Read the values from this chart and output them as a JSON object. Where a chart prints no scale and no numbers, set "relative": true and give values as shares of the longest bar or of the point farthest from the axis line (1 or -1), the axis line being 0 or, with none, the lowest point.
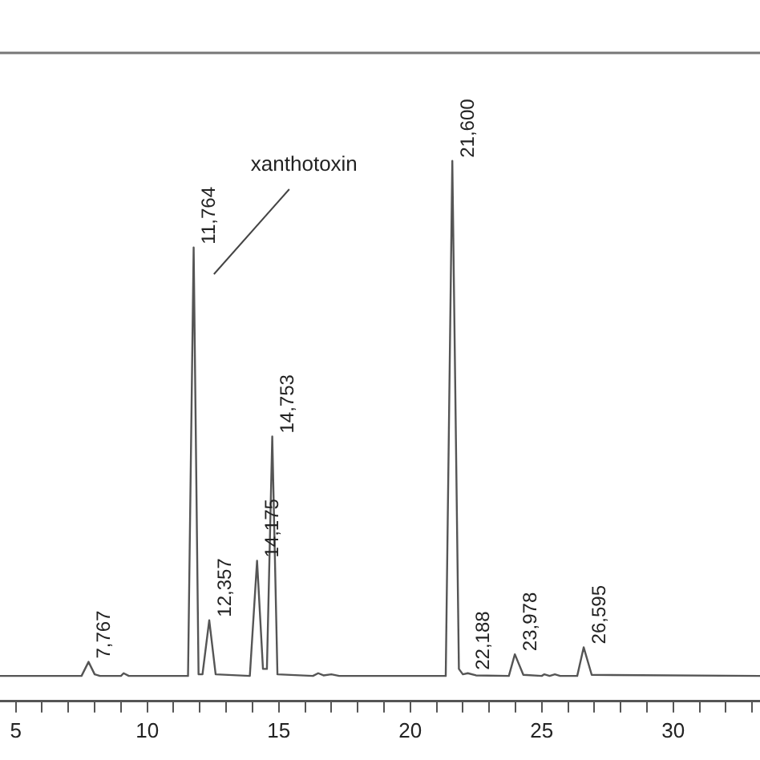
{
  "chart_data": {
    "type": "line",
    "relative": true,
    "xlim": [
      4.4,
      33.3
    ],
    "xticks": [
      5,
      {
        "value": 6,
        "label": null
      },
      {
        "value": 7,
        "label": null
      },
      {
        "value": 8,
        "label": null
      },
      {
        "value": 9,
        "label": null
      },
      10,
      {
        "value": 11,
        "label": null
      },
      {
        "value": 12,
        "label": null
      },
      {
        "value": 13,
        "label": null
      },
      {
        "value": 14,
        "label": null
      },
      15,
      {
        "value": 16,
        "label": null
      },
      {
        "value": 17,
        "label": null
      },
      {
        "value": 18,
        "label": null
      },
      {
        "value": 19,
        "label": null
      },
      20,
      {
        "value": 21,
        "label": null
      },
      {
        "value": 22,
        "label": null
      },
      {
        "value": 23,
        "label": null
      },
      {
        "value": 24,
        "label": null
      },
      25,
      {
        "value": 26,
        "label": null
      },
      {
        "value": 27,
        "label": null
      },
      {
        "value": 28,
        "label": null
      },
      {
        "value": 29,
        "label": null
      },
      30,
      {
        "value": 31,
        "label": null
      },
      {
        "value": 32,
        "label": null
      },
      {
        "value": 33,
        "label": null
      }
    ],
    "x": [
      4.4,
      7.5,
      7.767,
      8.0,
      8.2,
      9.0,
      9.1,
      9.3,
      11.55,
      11.764,
      11.95,
      12.1,
      12.357,
      12.6,
      13.9,
      14.175,
      14.4,
      14.55,
      14.753,
      14.95,
      16.3,
      16.5,
      16.7,
      17.0,
      17.3,
      21.35,
      21.6,
      21.85,
      22.0,
      22.188,
      22.5,
      23.75,
      23.978,
      24.3,
      25.0,
      25.1,
      25.3,
      25.5,
      25.7,
      26.35,
      26.595,
      26.9,
      33.3
    ],
    "series": [
      {
        "color": "#555555",
        "values": [
          0.047,
          0.047,
          0.073,
          0.05,
          0.047,
          0.047,
          0.052,
          0.047,
          0.047,
          0.84,
          0.05,
          0.05,
          0.15,
          0.05,
          0.047,
          0.26,
          0.06,
          0.06,
          0.49,
          0.05,
          0.047,
          0.052,
          0.048,
          0.05,
          0.047,
          0.047,
          1,
          0.06,
          0.05,
          0.052,
          0.048,
          0.047,
          0.087,
          0.049,
          0.047,
          0.05,
          0.047,
          0.05,
          0.047,
          0.047,
          0.1,
          0.049,
          0.047
        ]
      }
    ],
    "grid": false,
    "legend": false,
    "marker": "none",
    "line_style": "solid",
    "annotations": [
      {
        "text": "7,767",
        "x": 7.767,
        "y": 0.073
      },
      {
        "text": "11,764",
        "x": 11.764,
        "y": 0.84
      },
      {
        "text": "12,357",
        "x": 12.357,
        "y": 0.15
      },
      {
        "text": "14,175",
        "x": 14.175,
        "y": 0.26
      },
      {
        "text": "14,753",
        "x": 14.753,
        "y": 0.49
      },
      {
        "text": "21,600",
        "x": 21.6,
        "y": 1
      },
      {
        "text": "22,188",
        "x": 22.188,
        "y": 0.052
      },
      {
        "text": "23,978",
        "x": 23.978,
        "y": 0.087
      },
      {
        "text": "26,595",
        "x": 26.595,
        "y": 0.1
      },
      "xanthotoxin"
    ]
  }
}
